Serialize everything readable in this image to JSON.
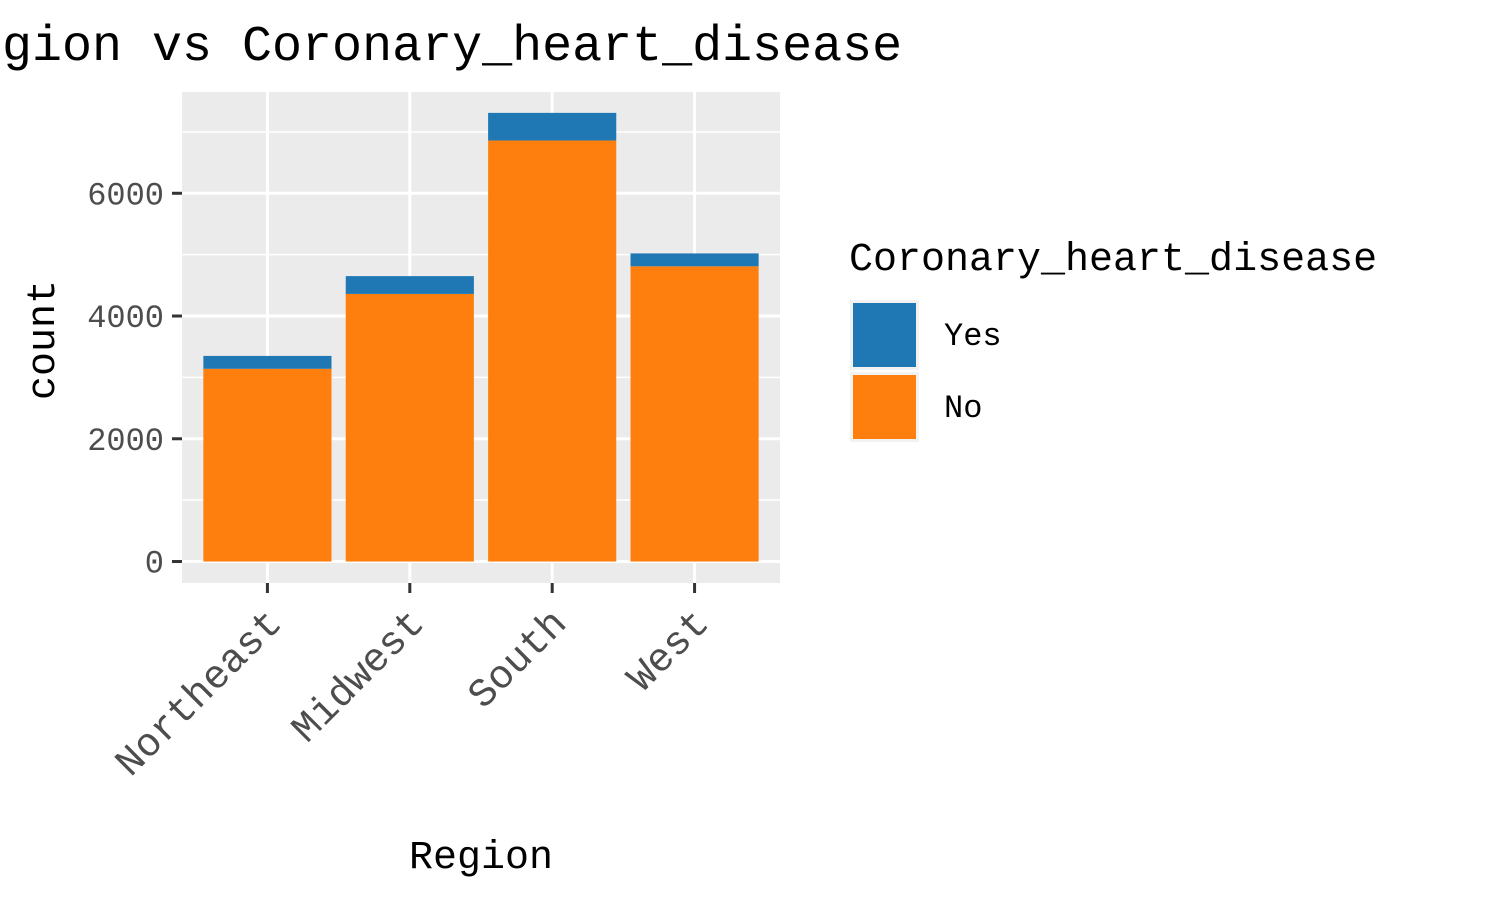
{
  "chart_data": {
    "type": "bar",
    "stacked": true,
    "title": "egion vs Coronary_heart_disease",
    "xlabel": "Region",
    "ylabel": "count",
    "categories": [
      "Northeast",
      "Midwest",
      "South",
      "West"
    ],
    "series": [
      {
        "name": "Yes",
        "color": "#1f77b4",
        "values": [
          210,
          290,
          450,
          210
        ]
      },
      {
        "name": "No",
        "color": "#ff7f0e",
        "values": [
          3140,
          4360,
          6860,
          4810
        ]
      }
    ],
    "yticks": [
      0,
      2000,
      4000,
      6000
    ],
    "ylim": [
      -350,
      7650
    ],
    "legend_title": "Coronary_heart_disease",
    "legend_position": "right",
    "grid": true,
    "panel_background": "#ebebeb"
  }
}
